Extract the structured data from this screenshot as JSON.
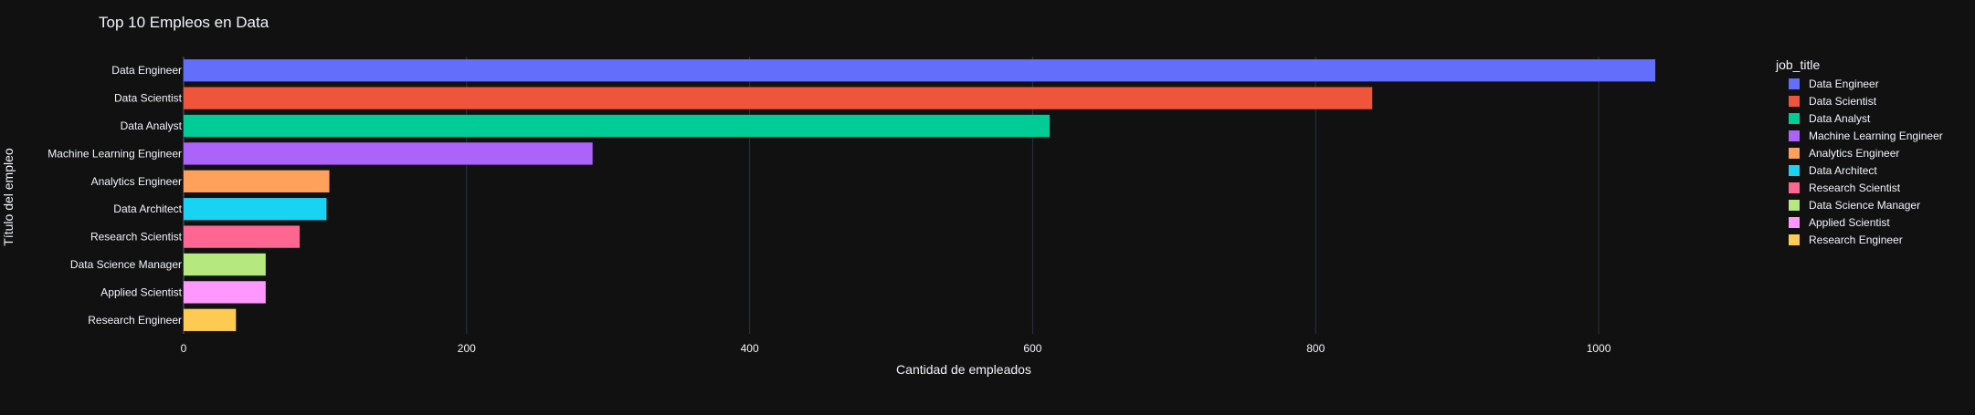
{
  "chart_data": {
    "type": "bar",
    "orientation": "horizontal",
    "title": "Top 10 Empleos en Data",
    "xlabel": "Cantidad de empleados",
    "ylabel": "Título del empleo",
    "xlim": [
      0,
      1060
    ],
    "xticks": [
      0,
      200,
      400,
      600,
      800,
      1000
    ],
    "grid": true,
    "legend_title": "job_title",
    "legend_position": "right",
    "categories": [
      "Data Engineer",
      "Data Scientist",
      "Data Analyst",
      "Machine Learning Engineer",
      "Analytics Engineer",
      "Data Architect",
      "Research Scientist",
      "Data Science Manager",
      "Applied Scientist",
      "Research Engineer"
    ],
    "values": [
      1040,
      840,
      612,
      289,
      103,
      101,
      82,
      58,
      58,
      37
    ],
    "colors": [
      "#636efa",
      "#ef553b",
      "#00cc96",
      "#ab63fa",
      "#ffa15a",
      "#19d3f3",
      "#ff6692",
      "#b6e880",
      "#ff97ff",
      "#fecb52"
    ]
  },
  "theme": {
    "background": "#111111",
    "grid_color": "#283442",
    "text_color": "#f2f5fa"
  }
}
